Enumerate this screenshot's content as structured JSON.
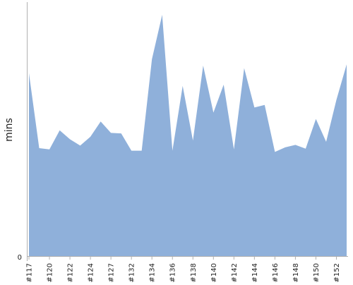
{
  "chart_data": {
    "type": "area",
    "ylabel": "mins",
    "xlabel": "",
    "title": "",
    "ylim": [
      0,
      100
    ],
    "y_ticks": [
      "0"
    ],
    "fill_color": "#8fb0da",
    "axis_color": "#b0b0b0",
    "x_tick_labels": [
      "#117",
      "#120",
      "#122",
      "#124",
      "#127",
      "#132",
      "#134",
      "#136",
      "#138",
      "#140",
      "#142",
      "#144",
      "#146",
      "#148",
      "#150",
      "#152"
    ],
    "x_tick_positions": [
      0,
      2,
      4,
      6,
      8,
      10,
      12,
      14,
      16,
      18,
      20,
      22,
      24,
      26,
      28,
      30
    ],
    "values": [
      72,
      42.5,
      42,
      49.5,
      46,
      43.5,
      47,
      53,
      48.5,
      48.3,
      41.5,
      41.5,
      77.5,
      95,
      41.5,
      67,
      45.5,
      75,
      56.5,
      67.5,
      42,
      74,
      58.5,
      59.5,
      41,
      42.8,
      43.8,
      42.3,
      54,
      45,
      61.5,
      75.5
    ]
  }
}
